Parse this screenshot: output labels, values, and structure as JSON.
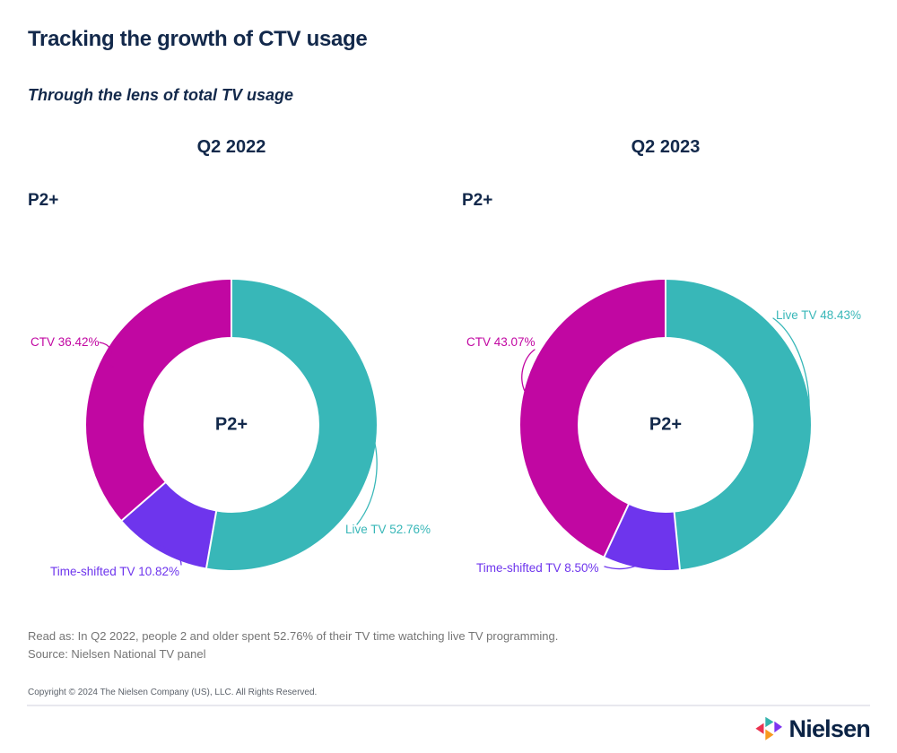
{
  "page": {
    "title": "Tracking the growth of CTV usage",
    "subtitle": "Through the lens of total TV usage",
    "read_as": "Read as: In Q2 2022, people 2 and older spent 52.76% of their TV time watching live TV programming.",
    "source": "Source: Nielsen National TV panel",
    "copyright": "Copyright © 2024 The Nielsen Company (US), LLC. All Rights Reserved.",
    "brand": "Nielsen"
  },
  "colors": {
    "navy": "#13294b",
    "live_tv": "#38b7b8",
    "ctv": "#c107a2",
    "time_shifted": "#6e35ed",
    "logo_red": "#ea3350",
    "logo_teal": "#33b3ac",
    "logo_orange": "#f8991d",
    "logo_purple": "#7d35f0"
  },
  "chart_data": [
    {
      "type": "pie",
      "variant": "donut",
      "title": "Q2 2022",
      "group_label": "P2+",
      "center_label": "P2+",
      "unit": "%",
      "start_angle_deg": 0,
      "direction": "clockwise",
      "legend_position": "callouts",
      "segments": [
        {
          "label": "Live TV",
          "value": 52.76,
          "color": "#38b7b8",
          "callout": "Live TV 52.76%"
        },
        {
          "label": "Time-shifted TV",
          "value": 10.82,
          "color": "#6e35ed",
          "callout": "Time-shifted TV 10.82%"
        },
        {
          "label": "CTV",
          "value": 36.42,
          "color": "#c107a2",
          "callout": "CTV 36.42%"
        }
      ]
    },
    {
      "type": "pie",
      "variant": "donut",
      "title": "Q2 2023",
      "group_label": "P2+",
      "center_label": "P2+",
      "unit": "%",
      "start_angle_deg": 0,
      "direction": "clockwise",
      "legend_position": "callouts",
      "segments": [
        {
          "label": "Live TV",
          "value": 48.43,
          "color": "#38b7b8",
          "callout": "Live TV 48.43%"
        },
        {
          "label": "Time-shifted TV",
          "value": 8.5,
          "color": "#6e35ed",
          "callout": "Time-shifted TV 8.50%"
        },
        {
          "label": "CTV",
          "value": 43.07,
          "color": "#c107a2",
          "callout": "CTV 43.07%"
        }
      ]
    }
  ]
}
